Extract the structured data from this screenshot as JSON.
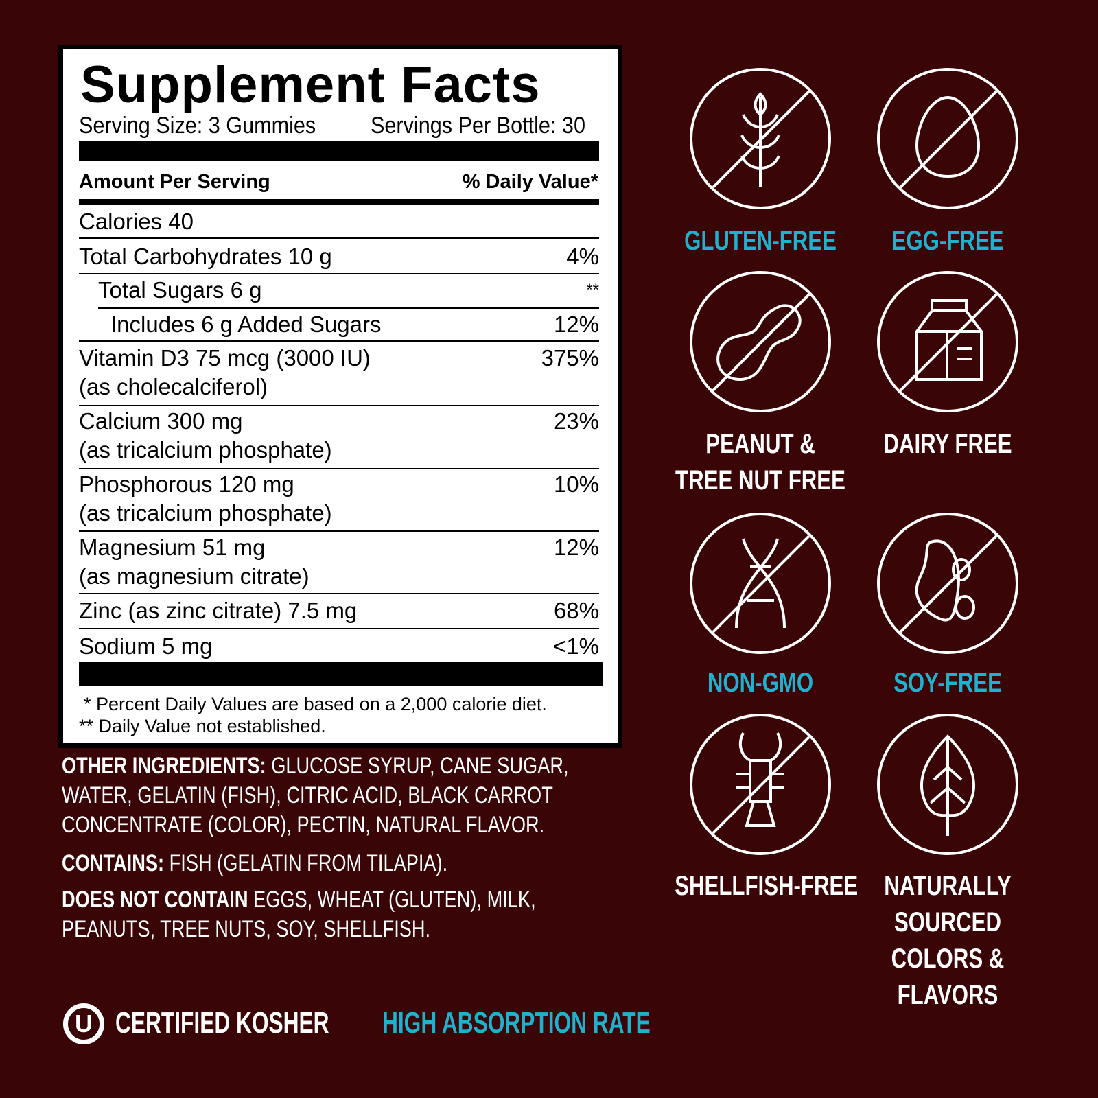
{
  "facts": {
    "title": "Supplement Facts",
    "serving_size": "Serving Size: 3 Gummies",
    "servings_per": "Servings Per Bottle: 30",
    "amount_header": "Amount Per Serving",
    "dv_header": "% Daily Value*",
    "rows": [
      {
        "name": "Calories 40",
        "dv": ""
      },
      {
        "name": "Total Carbohydrates 10 g",
        "dv": "4%"
      },
      {
        "name": "Total Sugars 6 g",
        "dv": "**"
      },
      {
        "name": "Includes 6 g Added Sugars",
        "dv": "12%"
      },
      {
        "name": "Vitamin D3 75 mcg (3000 IU)",
        "sub": "(as cholecalciferol)",
        "dv": "375%"
      },
      {
        "name": "Calcium 300 mg",
        "sub": "(as tricalcium phosphate)",
        "dv": "23%"
      },
      {
        "name": "Phosphorous 120 mg",
        "sub": "(as tricalcium phosphate)",
        "dv": "10%"
      },
      {
        "name": "Magnesium 51 mg",
        "sub": "(as magnesium citrate)",
        "dv": "12%"
      },
      {
        "name": "Zinc (as zinc citrate) 7.5 mg",
        "dv": "68%"
      },
      {
        "name": "Sodium 5 mg",
        "dv": "<1%"
      }
    ],
    "footnote1": "* Percent Daily Values are based on a 2,000 calorie diet.",
    "footnote2": "** Daily Value not established."
  },
  "ingredients": {
    "other_label": "OTHER INGREDIENTS:",
    "other_text": " GLUCOSE SYRUP, CANE SUGAR, WATER, GELATIN (FISH), CITRIC ACID, BLACK CARROT CONCENTRATE (COLOR), PECTIN, NATURAL FLAVOR.",
    "contains_label": "CONTAINS:",
    "contains_text": " FISH (GELATIN FROM TILAPIA).",
    "dnc_label": "DOES NOT CONTAIN",
    "dnc_text": " EGGS, WHEAT (GLUTEN), MILK, PEANUTS, TREE NUTS, SOY, SHELLFISH."
  },
  "badges": {
    "kosher_symbol": "U",
    "kosher": "CERTIFIED KOSHER",
    "absorption": "HIGH ABSORPTION RATE"
  },
  "icons": [
    {
      "icon": "wheat-icon",
      "line1": "GLUTEN-FREE",
      "color": "#1fb2cf"
    },
    {
      "icon": "egg-icon",
      "line1": "EGG-FREE",
      "color": "#1fb2cf"
    },
    {
      "icon": "peanut-icon",
      "line1": "PEANUT &",
      "line2": "TREE NUT FREE",
      "color": "#ffffff"
    },
    {
      "icon": "milk-carton-icon",
      "line1": "DAIRY FREE",
      "color": "#ffffff"
    },
    {
      "icon": "dna-icon",
      "line1": "NON-GMO",
      "color": "#1fb2cf"
    },
    {
      "icon": "soybean-icon",
      "line1": "SOY-FREE",
      "color": "#1fb2cf"
    },
    {
      "icon": "lobster-icon",
      "line1": "SHELLFISH-FREE",
      "color": "#ffffff"
    },
    {
      "icon": "leaf-icon",
      "line1": "NATURALLY",
      "line2": "SOURCED",
      "line3": "COLORS &",
      "line4": "FLAVORS",
      "color": "#ffffff"
    }
  ],
  "colors": {
    "background": "#3a0507",
    "accent": "#1fb2cf"
  }
}
